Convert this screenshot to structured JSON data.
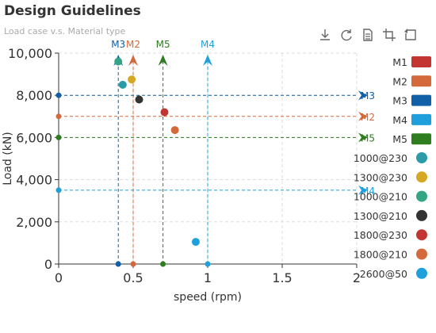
{
  "chart_data": {
    "type": "scatter",
    "title": "Design Guidelines",
    "subtitle": "Load case v.s. Material type",
    "xlabel": "speed (rpm)",
    "ylabel": "Load (kN)",
    "xlim": [
      0,
      2
    ],
    "ylim": [
      0,
      10000
    ],
    "x_ticks": [
      "0",
      "0.5",
      "1",
      "1.5",
      "2"
    ],
    "y_ticks": [
      "0",
      "2,000",
      "4,000",
      "6,000",
      "8,000",
      "10,000"
    ],
    "grid": "dashed",
    "legend_position": "right",
    "material_lines": [
      {
        "name": "M1",
        "color": "#c23531"
      },
      {
        "name": "M2",
        "color": "#d4693b",
        "speed": 0.5,
        "load": 7000
      },
      {
        "name": "M3",
        "color": "#1060a8",
        "speed": 0.4,
        "load": 8000
      },
      {
        "name": "M4",
        "color": "#1fa0dc",
        "speed": 1.0,
        "load": 3500
      },
      {
        "name": "M5",
        "color": "#2e7d1f",
        "speed": 0.7,
        "load": 6000
      }
    ],
    "series": [
      {
        "name": "1000@230",
        "color": "#2b9ca7",
        "points": [
          [
            0.43,
            8500
          ]
        ]
      },
      {
        "name": "1300@230",
        "color": "#d4a822",
        "points": [
          [
            0.49,
            8750
          ]
        ]
      },
      {
        "name": "1000@210",
        "color": "#33a584",
        "points": [
          [
            0.4,
            9600
          ]
        ]
      },
      {
        "name": "1300@210",
        "color": "#333333",
        "points": [
          [
            0.54,
            7800
          ]
        ]
      },
      {
        "name": "1800@230",
        "color": "#c23531",
        "points": [
          [
            0.71,
            7200
          ]
        ]
      },
      {
        "name": "1800@210",
        "color": "#d4693b",
        "points": [
          [
            0.78,
            6350
          ]
        ]
      },
      {
        "name": "2600@50",
        "color": "#1fa0dc",
        "points": [
          [
            0.92,
            1050
          ]
        ]
      }
    ]
  },
  "toolbox": {
    "icons": [
      "download-icon",
      "refresh-icon",
      "data-view-icon",
      "crop-zoom-icon",
      "zoom-reset-icon"
    ],
    "color": "#666666"
  }
}
